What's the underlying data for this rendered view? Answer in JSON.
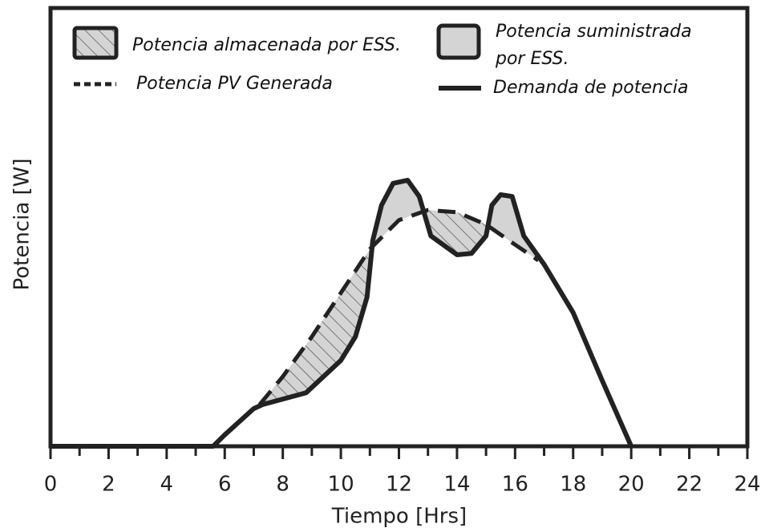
{
  "chart_data": {
    "type": "line",
    "xlabel": "Tiempo [Hrs]",
    "ylabel": "Potencia [W]",
    "xlim": [
      0,
      24
    ],
    "xticks": [
      0,
      2,
      4,
      6,
      8,
      10,
      12,
      14,
      16,
      18,
      20,
      22,
      24
    ],
    "xminorticks": [
      1,
      3,
      5,
      7,
      9,
      11,
      13,
      15,
      17,
      19,
      21,
      23
    ],
    "ylim": [
      0,
      100
    ],
    "series": [
      {
        "name": "Potencia PV Generada",
        "color": "#222",
        "dash": true,
        "x": [
          7.2,
          8,
          9,
          10,
          11,
          12,
          13,
          14,
          15,
          16,
          16.8
        ],
        "values": [
          9.5,
          15.9,
          25,
          35,
          45,
          51.6,
          53.9,
          53.4,
          50.6,
          46,
          42.4
        ]
      },
      {
        "name": "Demanda de potencia",
        "color": "#222",
        "dash": false,
        "x": [
          0,
          5.6,
          6,
          7,
          7.3,
          8.8,
          10,
          10.5,
          10.9,
          11.1,
          11.4,
          11.8,
          12.3,
          12.7,
          13.1,
          14,
          14.5,
          15,
          15.2,
          15.5,
          15.9,
          16.3,
          17,
          18,
          19,
          20
        ],
        "values": [
          0,
          0,
          2.6,
          8.6,
          9.5,
          12.2,
          19.6,
          25,
          34,
          47,
          55,
          60,
          60.7,
          57,
          48,
          43.7,
          44,
          48,
          55,
          57.4,
          57,
          48,
          41.5,
          30.5,
          15,
          0
        ]
      }
    ],
    "areas": [
      {
        "name": "Potencia almacenada por ESS.",
        "fill": "#d4d4d4",
        "hatch": true
      },
      {
        "name": "Potencia suministrada por ESS.",
        "fill": "#d4d4d4",
        "hatch": false
      }
    ]
  }
}
